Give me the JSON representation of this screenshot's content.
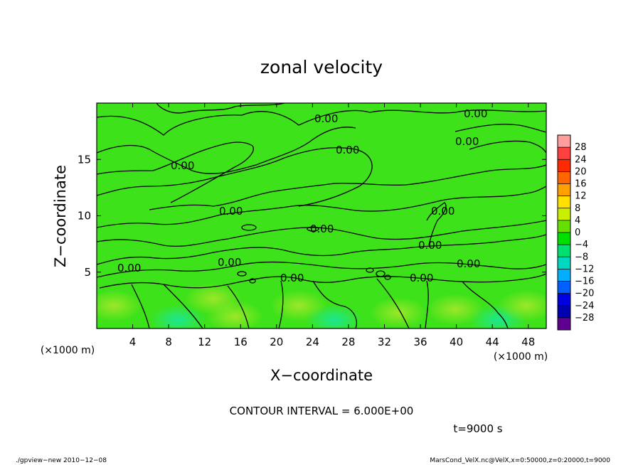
{
  "chart_data": {
    "type": "heatmap",
    "title": "zonal velocity",
    "xlabel": "X−coordinate",
    "ylabel": "Z−coordinate",
    "x_units": "(×1000 m)",
    "y_units": "(×1000 m)",
    "xlim": [
      0,
      50
    ],
    "ylim": [
      0,
      20
    ],
    "x_ticks": [
      4,
      8,
      12,
      16,
      20,
      24,
      28,
      32,
      36,
      40,
      44,
      48
    ],
    "y_ticks": [
      5,
      10,
      15
    ],
    "colorbar": {
      "levels": [
        28,
        24,
        20,
        16,
        12,
        8,
        4,
        0,
        -4,
        -8,
        -12,
        -16,
        -20,
        -24,
        -28
      ],
      "labels": [
        "28",
        "24",
        "20",
        "16",
        "12",
        "8",
        "4",
        "0",
        "−4",
        "−8",
        "−12",
        "−16",
        "−20",
        "−24",
        "−28"
      ],
      "colors": [
        "#ff9c9c",
        "#ff4040",
        "#ff2a00",
        "#ff6600",
        "#ffa000",
        "#ffe000",
        "#c8f000",
        "#66e000",
        "#00e000",
        "#00e070",
        "#00d8c0",
        "#00b0ff",
        "#0060ff",
        "#0000e0",
        "#0000b0",
        "#600090"
      ]
    },
    "contour_label": "0.00",
    "contour_interval_text": "CONTOUR INTERVAL = 6.000E+00",
    "time_text": "t=9000 s"
  },
  "footer": {
    "left": "./gpview−new  2010−12−08",
    "right": "MarsCond_VelX.nc@VelX,x=0:50000,z=0:20000,t=9000"
  }
}
